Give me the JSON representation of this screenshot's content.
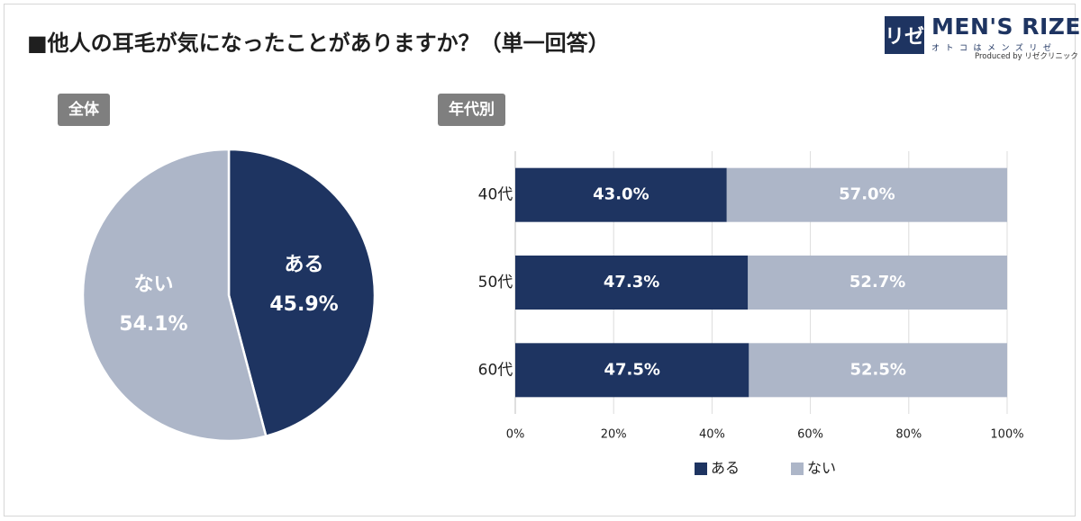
{
  "title": "■他人の耳毛が気になったことがありますか？（単一回答）",
  "logo": {
    "mark": "リゼ",
    "name": "MEN'S RIZE",
    "kana": "オトコはメンズリゼ",
    "produced": "Produced by リゼクリニック"
  },
  "colors": {
    "yes": "#1e3461",
    "no": "#adb6c8",
    "tag": "#7f7f7f"
  },
  "chart_data": [
    {
      "type": "pie",
      "title": "全体",
      "slices": [
        {
          "label": "ある",
          "value": 45.9,
          "display": "45.9%"
        },
        {
          "label": "ない",
          "value": 54.1,
          "display": "54.1%"
        }
      ]
    },
    {
      "type": "bar",
      "orientation": "horizontal",
      "stacked": true,
      "title": "年代別",
      "categories": [
        "40代",
        "50代",
        "60代"
      ],
      "series": [
        {
          "name": "ある",
          "values": [
            43.0,
            47.3,
            47.5
          ],
          "labels": [
            "43.0%",
            "47.3%",
            "47.5%"
          ]
        },
        {
          "name": "ない",
          "values": [
            57.0,
            52.7,
            52.5
          ],
          "labels": [
            "57.0%",
            "52.7%",
            "52.5%"
          ]
        }
      ],
      "xlim": [
        0,
        100
      ],
      "xticks": [
        "0%",
        "20%",
        "40%",
        "60%",
        "80%",
        "100%"
      ],
      "grid": true,
      "legend": "bottom"
    }
  ]
}
